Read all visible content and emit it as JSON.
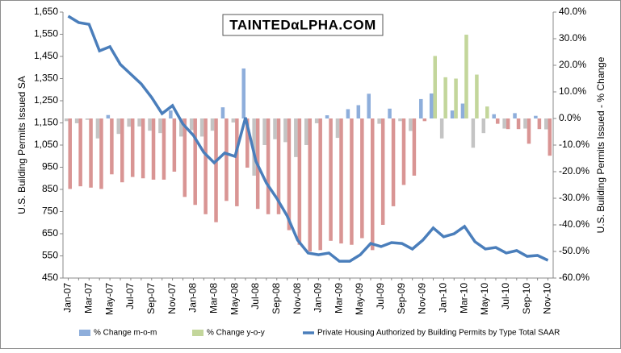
{
  "chart_data": {
    "type": "combo",
    "logo": "TAINTEDαLPHA.COM",
    "y_label": "U.S. Building Permits Issued SA",
    "y2_label": "U.S. Building Permits Issued - % Change",
    "categories": [
      "Jan-07",
      null,
      "Mar-07",
      null,
      "May-07",
      null,
      "Jul-07",
      null,
      "Sep-07",
      null,
      "Nov-07",
      null,
      "Jan-08",
      null,
      "Mar-08",
      null,
      "May-08",
      null,
      "Jul-08",
      null,
      "Sep-08",
      null,
      "Nov-08",
      null,
      "Jan-09",
      null,
      "Mar-09",
      null,
      "May-09",
      null,
      "Jul-09",
      null,
      "Sep-09",
      null,
      "Nov-09",
      null,
      "Jan-10",
      null,
      "Mar-10",
      null,
      "May-10",
      null,
      "Jul-10",
      null,
      "Sep-10",
      null,
      "Nov-10"
    ],
    "ylim": [
      450,
      1650
    ],
    "yticks": [
      450,
      550,
      650,
      750,
      850,
      950,
      {
        "value": 1050,
        "label": "1,050"
      },
      {
        "value": 1150,
        "label": "1,150"
      },
      {
        "value": 1250,
        "label": "1,250"
      },
      {
        "value": 1350,
        "label": "1,350"
      },
      {
        "value": 1450,
        "label": "1,450"
      },
      {
        "value": 1550,
        "label": "1,550"
      },
      {
        "value": 1650,
        "label": "1,650"
      }
    ],
    "y2lim": [
      -60,
      40
    ],
    "y2ticks": [
      {
        "value": -60,
        "label": "-60.0%"
      },
      {
        "value": -50,
        "label": "-50.0%"
      },
      {
        "value": -40,
        "label": "-40.0%"
      },
      {
        "value": -30,
        "label": "-30.0%"
      },
      {
        "value": -20,
        "label": "-20.0%"
      },
      {
        "value": -10,
        "label": "-10.0%"
      },
      {
        "value": 0,
        "label": "0.0%"
      },
      {
        "value": 10,
        "label": "10.0%"
      },
      {
        "value": 20,
        "label": "20.0%"
      },
      {
        "value": 30,
        "label": "30.0%"
      },
      {
        "value": 40,
        "label": "40.0%"
      }
    ],
    "series": [
      {
        "name": "% Change m-o-m",
        "type": "bar",
        "axis": "y2",
        "color": "#8eaedb",
        "negative_color": "#c4c4c4",
        "values": [
          -1,
          -1.8,
          -0.5,
          -7.5,
          1.3,
          -5.8,
          -3.1,
          -3,
          -4.6,
          -5.5,
          3,
          -6.8,
          -4.4,
          -6.8,
          -4.6,
          4.2,
          -1.5,
          18.8,
          -21.5,
          -10,
          -7.8,
          -8.9,
          -14.5,
          -10,
          -1.8,
          1.2,
          -7.3,
          3.5,
          5,
          9.3,
          -2,
          3.7,
          -1,
          -4.7,
          7.3,
          9.4,
          -7.5,
          3,
          5.6,
          -11,
          -5.5,
          1.6,
          -3.8,
          2,
          -3.8,
          1,
          -4.1
        ]
      },
      {
        "name": "% Change y-o-y",
        "type": "bar",
        "axis": "y2",
        "color": "#c3d69b",
        "negative_color": "#d99594",
        "values": [
          -26.5,
          -25.5,
          -26,
          -26.5,
          -21,
          -24,
          -22,
          -22.5,
          -23,
          -23,
          -20,
          -29.5,
          -32.5,
          -36,
          -39,
          -31,
          -33,
          -18.5,
          -34,
          -36,
          -36,
          -42,
          -47.5,
          -50,
          -49.5,
          -46,
          -47,
          -47.5,
          -45,
          -49.5,
          -40,
          -33,
          -25,
          -21.5,
          -1,
          23.5,
          15.5,
          15,
          31.5,
          16.5,
          4.5,
          -2,
          -4,
          -4,
          -9.5,
          -4,
          -14
        ]
      },
      {
        "name": "Private Housing Authorized by Building Permits by Type Total SAAR",
        "type": "line",
        "axis": "y",
        "color": "#4a7ebb",
        "values": [
          1632,
          1603,
          1595,
          1475,
          1494,
          1414,
          1370,
          1326,
          1265,
          1192,
          1228,
          1145,
          1094,
          1017,
          970,
          1014,
          999,
          1174,
          977,
          879,
          810,
          730,
          621,
          563,
          555,
          563,
          526,
          526,
          555,
          606,
          592,
          610,
          606,
          581,
          621,
          676,
          636,
          650,
          683,
          614,
          581,
          588,
          563,
          574,
          548,
          552,
          530
        ]
      }
    ]
  }
}
